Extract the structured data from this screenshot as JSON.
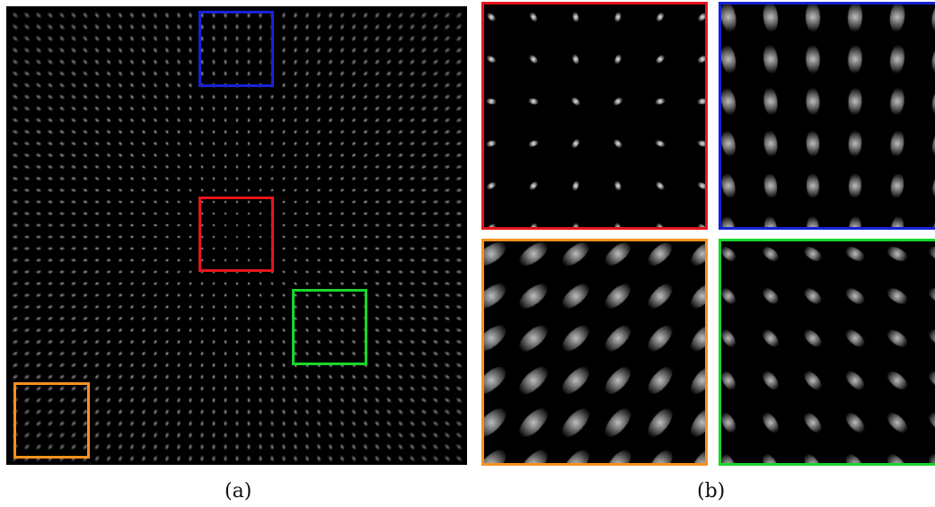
{
  "figure": {
    "captions": {
      "left": "(a)",
      "right": "(b)"
    },
    "colors": {
      "red": "#e8141c",
      "blue": "#1722d6",
      "green": "#19d62c",
      "orange": "#f5911e",
      "background": "#000000",
      "spot": "#ffffff"
    },
    "zoom_views": [
      "red",
      "blue",
      "orange",
      "green"
    ]
  }
}
